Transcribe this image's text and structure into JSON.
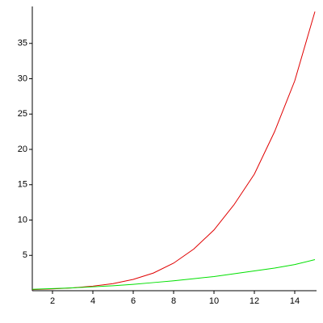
{
  "chart_data": {
    "type": "line",
    "x": [
      1,
      2,
      3,
      4,
      5,
      6,
      7,
      8,
      9,
      10,
      11,
      12,
      13,
      14,
      15
    ],
    "series": [
      {
        "color": "#e00000",
        "values": [
          0.15,
          0.25,
          0.4,
          0.65,
          1.0,
          1.6,
          2.5,
          3.9,
          5.9,
          8.6,
          12.2,
          16.5,
          22.5,
          29.7,
          39.5
        ]
      },
      {
        "color": "#00e000",
        "values": [
          0.2,
          0.3,
          0.4,
          0.55,
          0.7,
          0.9,
          1.15,
          1.4,
          1.7,
          2.0,
          2.4,
          2.8,
          3.2,
          3.7,
          4.4
        ]
      }
    ],
    "xlim": [
      1,
      15
    ],
    "ylim": [
      0,
      40
    ],
    "xticks": [
      2,
      4,
      6,
      8,
      10,
      12,
      14
    ],
    "yticks": [
      5,
      10,
      15,
      20,
      25,
      30,
      35
    ]
  }
}
